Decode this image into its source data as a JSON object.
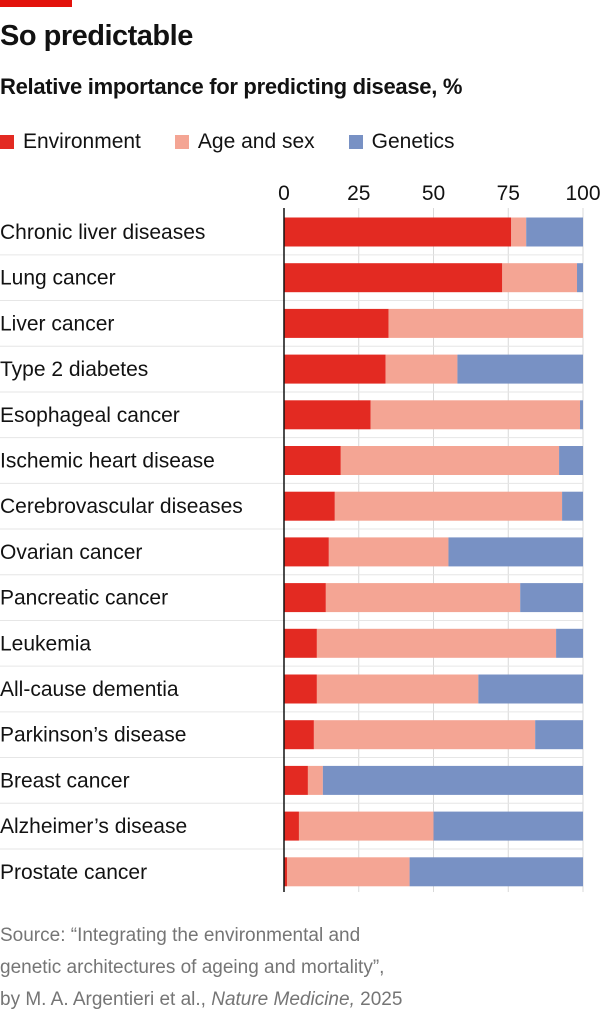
{
  "title": "So predictable",
  "subtitle": "Relative importance for predicting disease, %",
  "legend": [
    {
      "label": "Environment",
      "color": "#e32a22"
    },
    {
      "label": "Age and sex",
      "color": "#f4a594"
    },
    {
      "label": "Genetics",
      "color": "#7891c4"
    }
  ],
  "source": {
    "line1": "Source: “Integrating the environmental and",
    "line2": "genetic architectures of ageing and mortality”,",
    "line3_prefix": "by M. A. Argentieri et al., ",
    "line3_journal": "Nature Medicine,",
    "line3_suffix": " 2025"
  },
  "chart_data": {
    "type": "bar",
    "orientation": "horizontal",
    "stacked": true,
    "xlim": [
      0,
      100
    ],
    "xticks": [
      "0",
      "25",
      "50",
      "75",
      "100"
    ],
    "grid": true,
    "categories": [
      "Chronic liver diseases",
      "Lung cancer",
      "Liver cancer",
      "Type 2 diabetes",
      "Esophageal cancer",
      "Ischemic heart disease",
      "Cerebrovascular diseases",
      "Ovarian cancer",
      "Pancreatic cancer",
      "Leukemia",
      "All-cause dementia",
      "Parkinson’s disease",
      "Breast cancer",
      "Alzheimer’s disease",
      "Prostate cancer"
    ],
    "series": [
      {
        "name": "Environment",
        "color": "#e32a22",
        "values": [
          76,
          73,
          35,
          34,
          29,
          19,
          17,
          15,
          14,
          11,
          11,
          10,
          8,
          5,
          1
        ]
      },
      {
        "name": "Age and sex",
        "color": "#f4a594",
        "values": [
          5,
          25,
          65,
          24,
          70,
          73,
          76,
          40,
          65,
          80,
          54,
          74,
          5,
          45,
          41
        ]
      },
      {
        "name": "Genetics",
        "color": "#7891c4",
        "values": [
          19,
          2,
          0,
          42,
          1,
          8,
          7,
          45,
          21,
          9,
          35,
          16,
          87,
          50,
          58
        ]
      }
    ]
  }
}
